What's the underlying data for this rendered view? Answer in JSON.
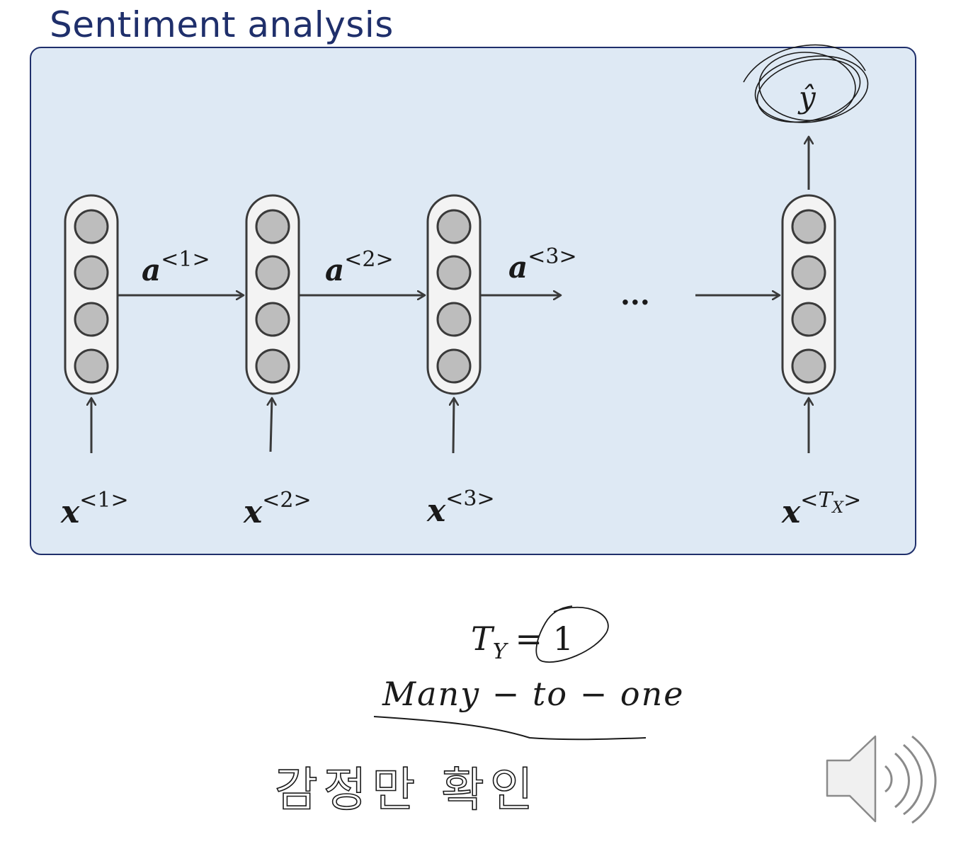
{
  "slide": {
    "title": "Sentiment analysis"
  },
  "diagram": {
    "activations": [
      {
        "base": "a",
        "sup": "<1>"
      },
      {
        "base": "a",
        "sup": "<2>"
      },
      {
        "base": "a",
        "sup": "<3>"
      }
    ],
    "inputs": [
      {
        "base": "x",
        "sup": "<1>"
      },
      {
        "base": "x",
        "sup": "<2>"
      },
      {
        "base": "x",
        "sup": "<3>"
      },
      {
        "base": "x",
        "sup_pre": "<",
        "sup_var": "T",
        "sup_sub": "X",
        "sup_post": ">"
      }
    ],
    "ellipsis": "...",
    "output": {
      "label": "ŷ"
    }
  },
  "notes": {
    "ty_var": "T",
    "ty_sub": "Y",
    "ty_eq": "= 1",
    "relation": "Many − to − one",
    "handwritten_korean": "감정만 확인"
  },
  "icons": {
    "speaker": "speaker-icon"
  },
  "colors": {
    "title": "#1f2f6b",
    "panel_fill": "#dee9f4",
    "panel_border": "#1f2f6b",
    "node_fill": "#bdbdbd",
    "ink": "#3a3a3a"
  }
}
